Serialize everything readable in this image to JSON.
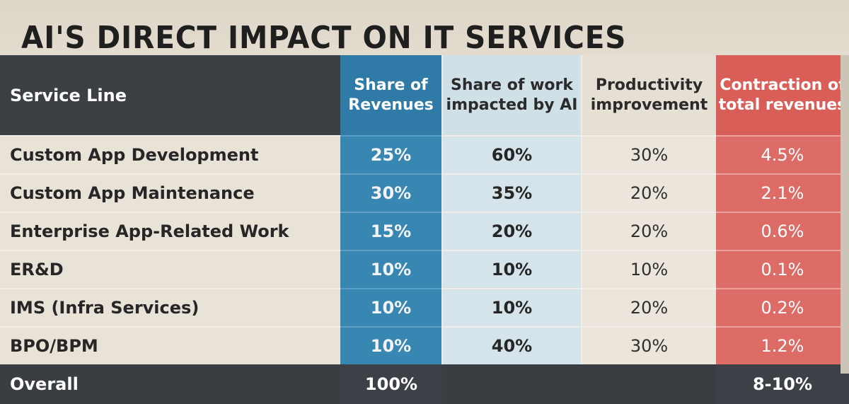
{
  "chart_data": {
    "type": "table",
    "title": "AI'S DIRECT IMPACT ON IT SERVICES",
    "columns": [
      "Service Line",
      "Share of Revenues",
      "Share of work impacted by AI",
      "Productivity improvement",
      "Contraction of total revenues"
    ],
    "header_lines": {
      "service": [
        "Service Line"
      ],
      "share": [
        "Share of",
        "Revenues"
      ],
      "work": [
        "Share of work",
        "impacted by AI"
      ],
      "productivity": [
        "Productivity",
        "improvement"
      ],
      "contraction": [
        "Contraction of",
        "total revenues"
      ]
    },
    "rows": [
      {
        "service": "Custom App Development",
        "share": "25%",
        "work": "60%",
        "productivity": "30%",
        "contraction": "4.5%"
      },
      {
        "service": "Custom App Maintenance",
        "share": "30%",
        "work": "35%",
        "productivity": "20%",
        "contraction": "2.1%"
      },
      {
        "service": "Enterprise App-Related Work",
        "share": "15%",
        "work": "20%",
        "productivity": "20%",
        "contraction": "0.6%"
      },
      {
        "service": "ER&D",
        "share": "10%",
        "work": "10%",
        "productivity": "10%",
        "contraction": "0.1%"
      },
      {
        "service": "IMS (Infra Services)",
        "share": "10%",
        "work": "10%",
        "productivity": "20%",
        "contraction": "0.2%"
      },
      {
        "service": "BPO/BPM",
        "share": "10%",
        "work": "40%",
        "productivity": "30%",
        "contraction": "1.2%"
      }
    ],
    "footer": {
      "service": "Overall",
      "share": "100%",
      "contraction": "8-10%"
    }
  },
  "colors": {
    "header_dark": "#3c3f44",
    "share_blue": "#3887b2",
    "work_light_blue": "#d4e4ea",
    "contraction_red": "#de6c66",
    "background_beige": "#e9e3d7"
  }
}
